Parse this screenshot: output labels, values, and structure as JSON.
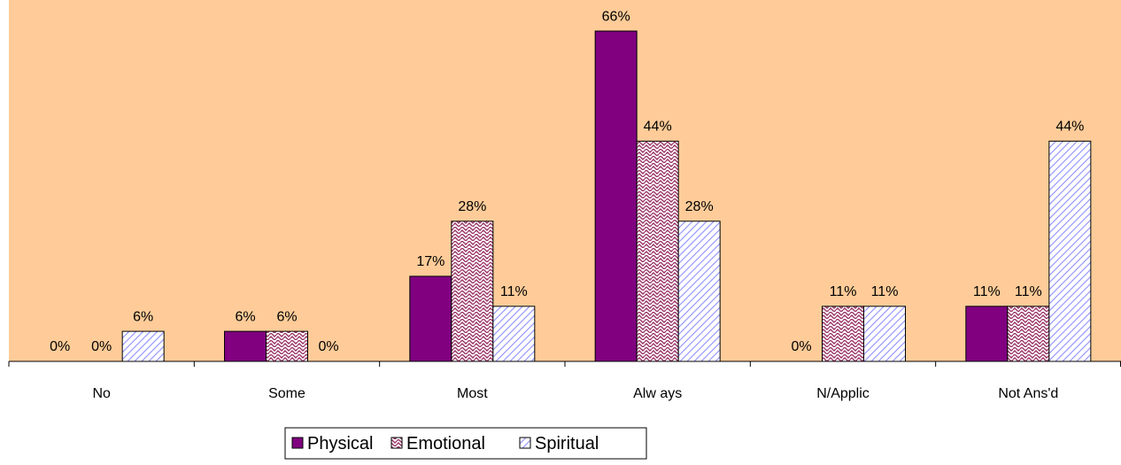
{
  "chart_data": {
    "type": "bar",
    "categories": [
      "No",
      "Some",
      "Most",
      "Alw ays",
      "N/Applic",
      "Not Ans'd"
    ],
    "series": [
      {
        "name": "Physical",
        "color": "#800080",
        "pattern": "solid",
        "values": [
          0,
          6,
          17,
          66,
          0,
          11
        ],
        "value_labels": [
          "0%",
          "6%",
          "17%",
          "66%",
          "0%",
          "11%"
        ]
      },
      {
        "name": "Emotional",
        "color": "#993366",
        "pattern": "wave",
        "values": [
          0,
          6,
          28,
          44,
          11,
          11
        ],
        "value_labels": [
          "0%",
          "6%",
          "28%",
          "44%",
          "11%",
          "11%"
        ]
      },
      {
        "name": "Spiritual",
        "color": "#9999ff",
        "pattern": "diagonal",
        "values": [
          6,
          0,
          11,
          28,
          11,
          44
        ],
        "value_labels": [
          "6%",
          "0%",
          "11%",
          "28%",
          "11%",
          "44%"
        ]
      }
    ],
    "ylim": [
      0,
      72.2
    ],
    "background": "#ffcc99",
    "legend": "bottom"
  }
}
